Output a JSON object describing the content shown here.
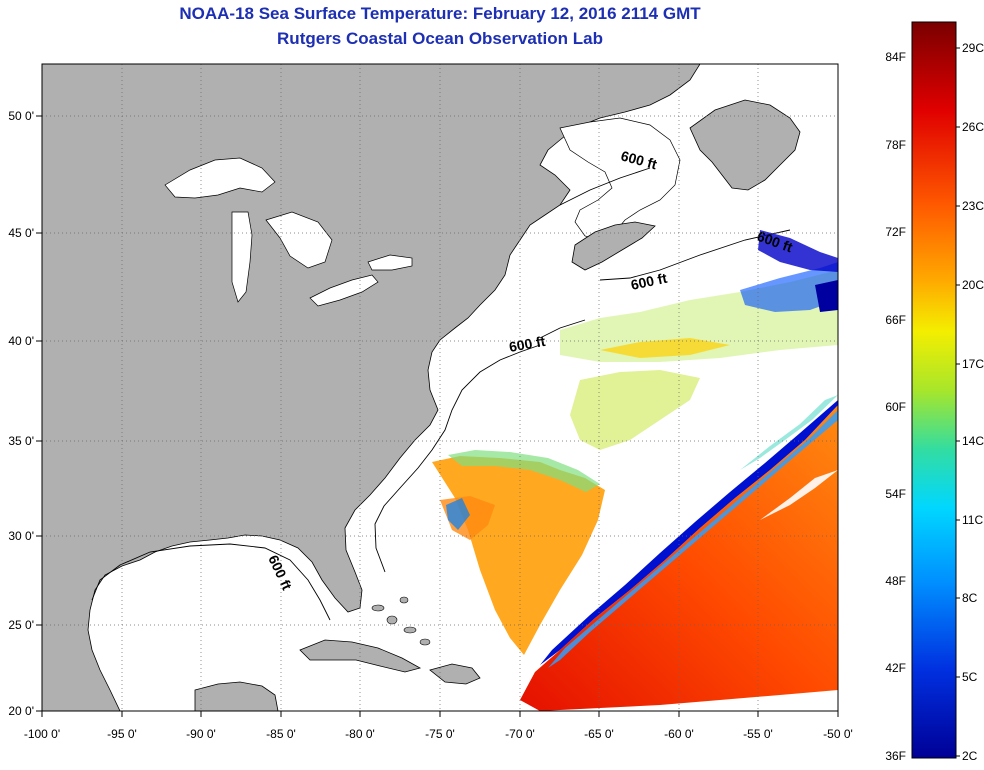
{
  "title": "NOAA-18 Sea Surface Temperature:  February 12, 2016 2114 GMT",
  "subtitle": "Rutgers Coastal Ocean Observation Lab",
  "lon_labels": [
    "-100 0'",
    "-95 0'",
    "-90 0'",
    "-85 0'",
    "-80 0'",
    "-75 0'",
    "-70 0'",
    "-65 0'",
    "-60 0'",
    "-55 0'",
    "-50 0'"
  ],
  "lat_labels": [
    "50 0'",
    "45 0'",
    "40 0'",
    "35 0'",
    "30 0'",
    "25 0'",
    "20 0'"
  ],
  "colorbar": {
    "fahrenheit": [
      "84F",
      "78F",
      "72F",
      "66F",
      "60F",
      "54F",
      "48F",
      "42F",
      "36F"
    ],
    "celsius": [
      "29C",
      "26C",
      "23C",
      "20C",
      "17C",
      "14C",
      "11C",
      "8C",
      "5C",
      "2C"
    ]
  },
  "contour_label": "600 ft",
  "colors": {
    "land": "#b0b0b0",
    "title": "#1d2fb3",
    "ramp": [
      "#7a0000",
      "#e00000",
      "#ff5a00",
      "#ffa800",
      "#f4ee00",
      "#a8e62a",
      "#33dda0",
      "#00d7ff",
      "#0090ff",
      "#0030e0",
      "#000096"
    ]
  }
}
